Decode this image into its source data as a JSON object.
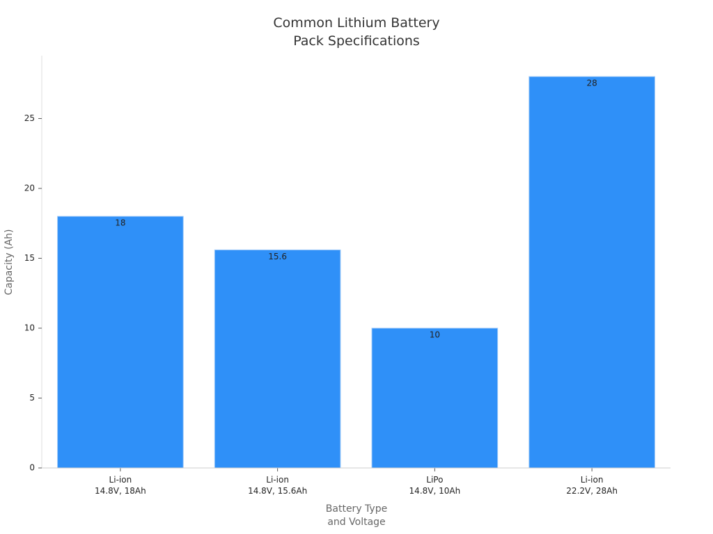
{
  "chart_data": {
    "type": "bar",
    "title": "Common Lithium Battery\nPack Specifications",
    "x_label": "Battery Type\nand Voltage",
    "y_label": "Capacity (Ah)",
    "categories": [
      "Li-ion\n14.8V, 18Ah",
      "Li-ion\n14.8V, 15.6Ah",
      "LiPo\n14.8V, 10Ah",
      "Li-ion\n22.2V, 28Ah"
    ],
    "values": [
      18,
      15.6,
      10,
      28
    ],
    "color": "#2f90f8",
    "ylim": [
      0,
      29.5
    ],
    "yticks": [
      0,
      5,
      10,
      15,
      20,
      25
    ]
  }
}
